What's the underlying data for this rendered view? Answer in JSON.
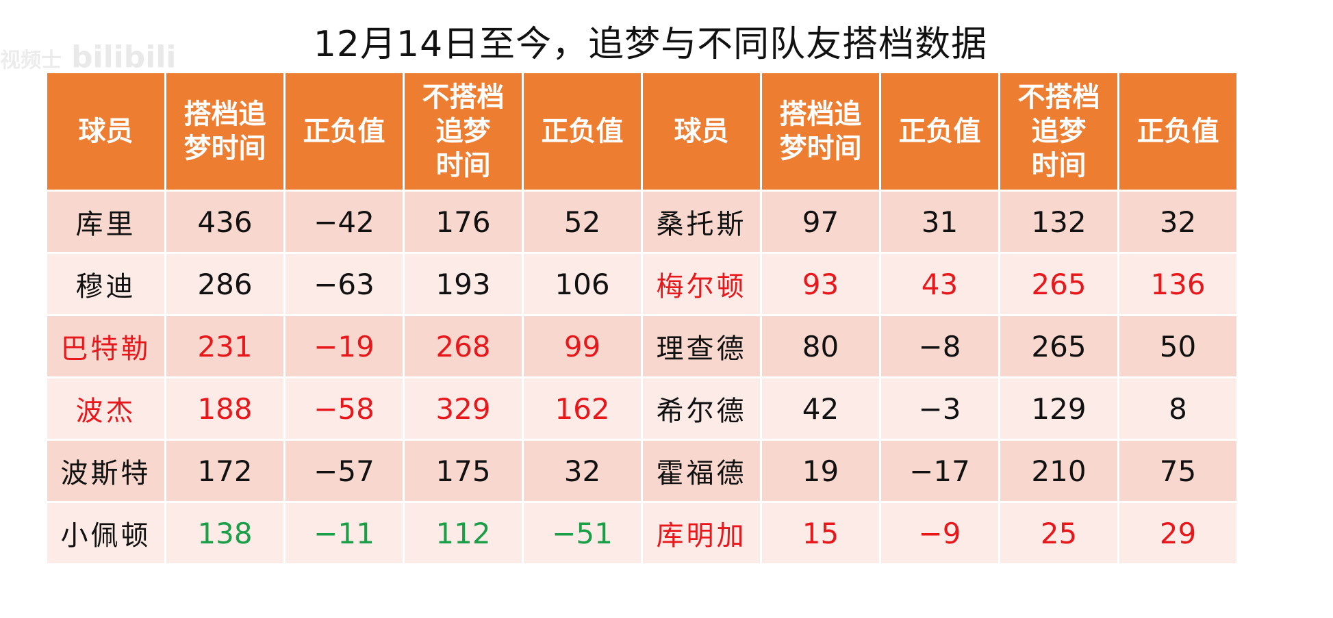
{
  "title": "12月14日至今，追梦与不同队友搭档数据",
  "watermark": {
    "prefix": "视频士",
    "brand": "bilibili"
  },
  "colors": {
    "header_bg": "#ed7d31",
    "row_odd": "#f8d8ce",
    "row_even": "#fcebe6",
    "red": "#e8171b",
    "green": "#1a9e48"
  },
  "chart_data": {
    "type": "table",
    "headers": [
      "球员",
      "搭档追梦时间",
      "正负值",
      "不搭档追梦时间",
      "正负值",
      "球员",
      "搭档追梦时间",
      "正负值",
      "不搭档追梦时间",
      "正负值"
    ],
    "header_display": [
      [
        "球员"
      ],
      [
        "搭档追",
        "梦时间"
      ],
      [
        "正负值"
      ],
      [
        "不搭档",
        "追梦",
        "时间"
      ],
      [
        "正负值"
      ],
      [
        "球员"
      ],
      [
        "搭档追",
        "梦时间"
      ],
      [
        "正负值"
      ],
      [
        "不搭档",
        "追梦",
        "时间"
      ],
      [
        "正负值"
      ]
    ],
    "rows": [
      {
        "left": {
          "name": "库里",
          "with": "436",
          "pm_with": "−42",
          "without": "176",
          "pm_without": "52",
          "color": "black"
        },
        "right": {
          "name": "桑托斯",
          "with": "97",
          "pm_with": "31",
          "without": "132",
          "pm_without": "32",
          "color": "black"
        }
      },
      {
        "left": {
          "name": "穆迪",
          "with": "286",
          "pm_with": "−63",
          "without": "193",
          "pm_without": "106",
          "color": "black"
        },
        "right": {
          "name": "梅尔顿",
          "with": "93",
          "pm_with": "43",
          "without": "265",
          "pm_without": "136",
          "color": "red"
        }
      },
      {
        "left": {
          "name": "巴特勒",
          "with": "231",
          "pm_with": "−19",
          "without": "268",
          "pm_without": "99",
          "color": "red"
        },
        "right": {
          "name": "理查德",
          "with": "80",
          "pm_with": "−8",
          "without": "265",
          "pm_without": "50",
          "color": "black"
        }
      },
      {
        "left": {
          "name": "波杰",
          "with": "188",
          "pm_with": "−58",
          "without": "329",
          "pm_without": "162",
          "color": "red"
        },
        "right": {
          "name": "希尔德",
          "with": "42",
          "pm_with": "−3",
          "without": "129",
          "pm_without": "8",
          "color": "black"
        }
      },
      {
        "left": {
          "name": "波斯特",
          "with": "172",
          "pm_with": "−57",
          "without": "175",
          "pm_without": "32",
          "color": "black"
        },
        "right": {
          "name": "霍福德",
          "with": "19",
          "pm_with": "−17",
          "without": "210",
          "pm_without": "75",
          "color": "black"
        }
      },
      {
        "left": {
          "name": "小佩顿",
          "with": "138",
          "pm_with": "−11",
          "without": "112",
          "pm_without": "−51",
          "color": "green"
        },
        "right": {
          "name": "库明加",
          "with": "15",
          "pm_with": "−9",
          "without": "25",
          "pm_without": "29",
          "color": "red"
        }
      }
    ]
  }
}
